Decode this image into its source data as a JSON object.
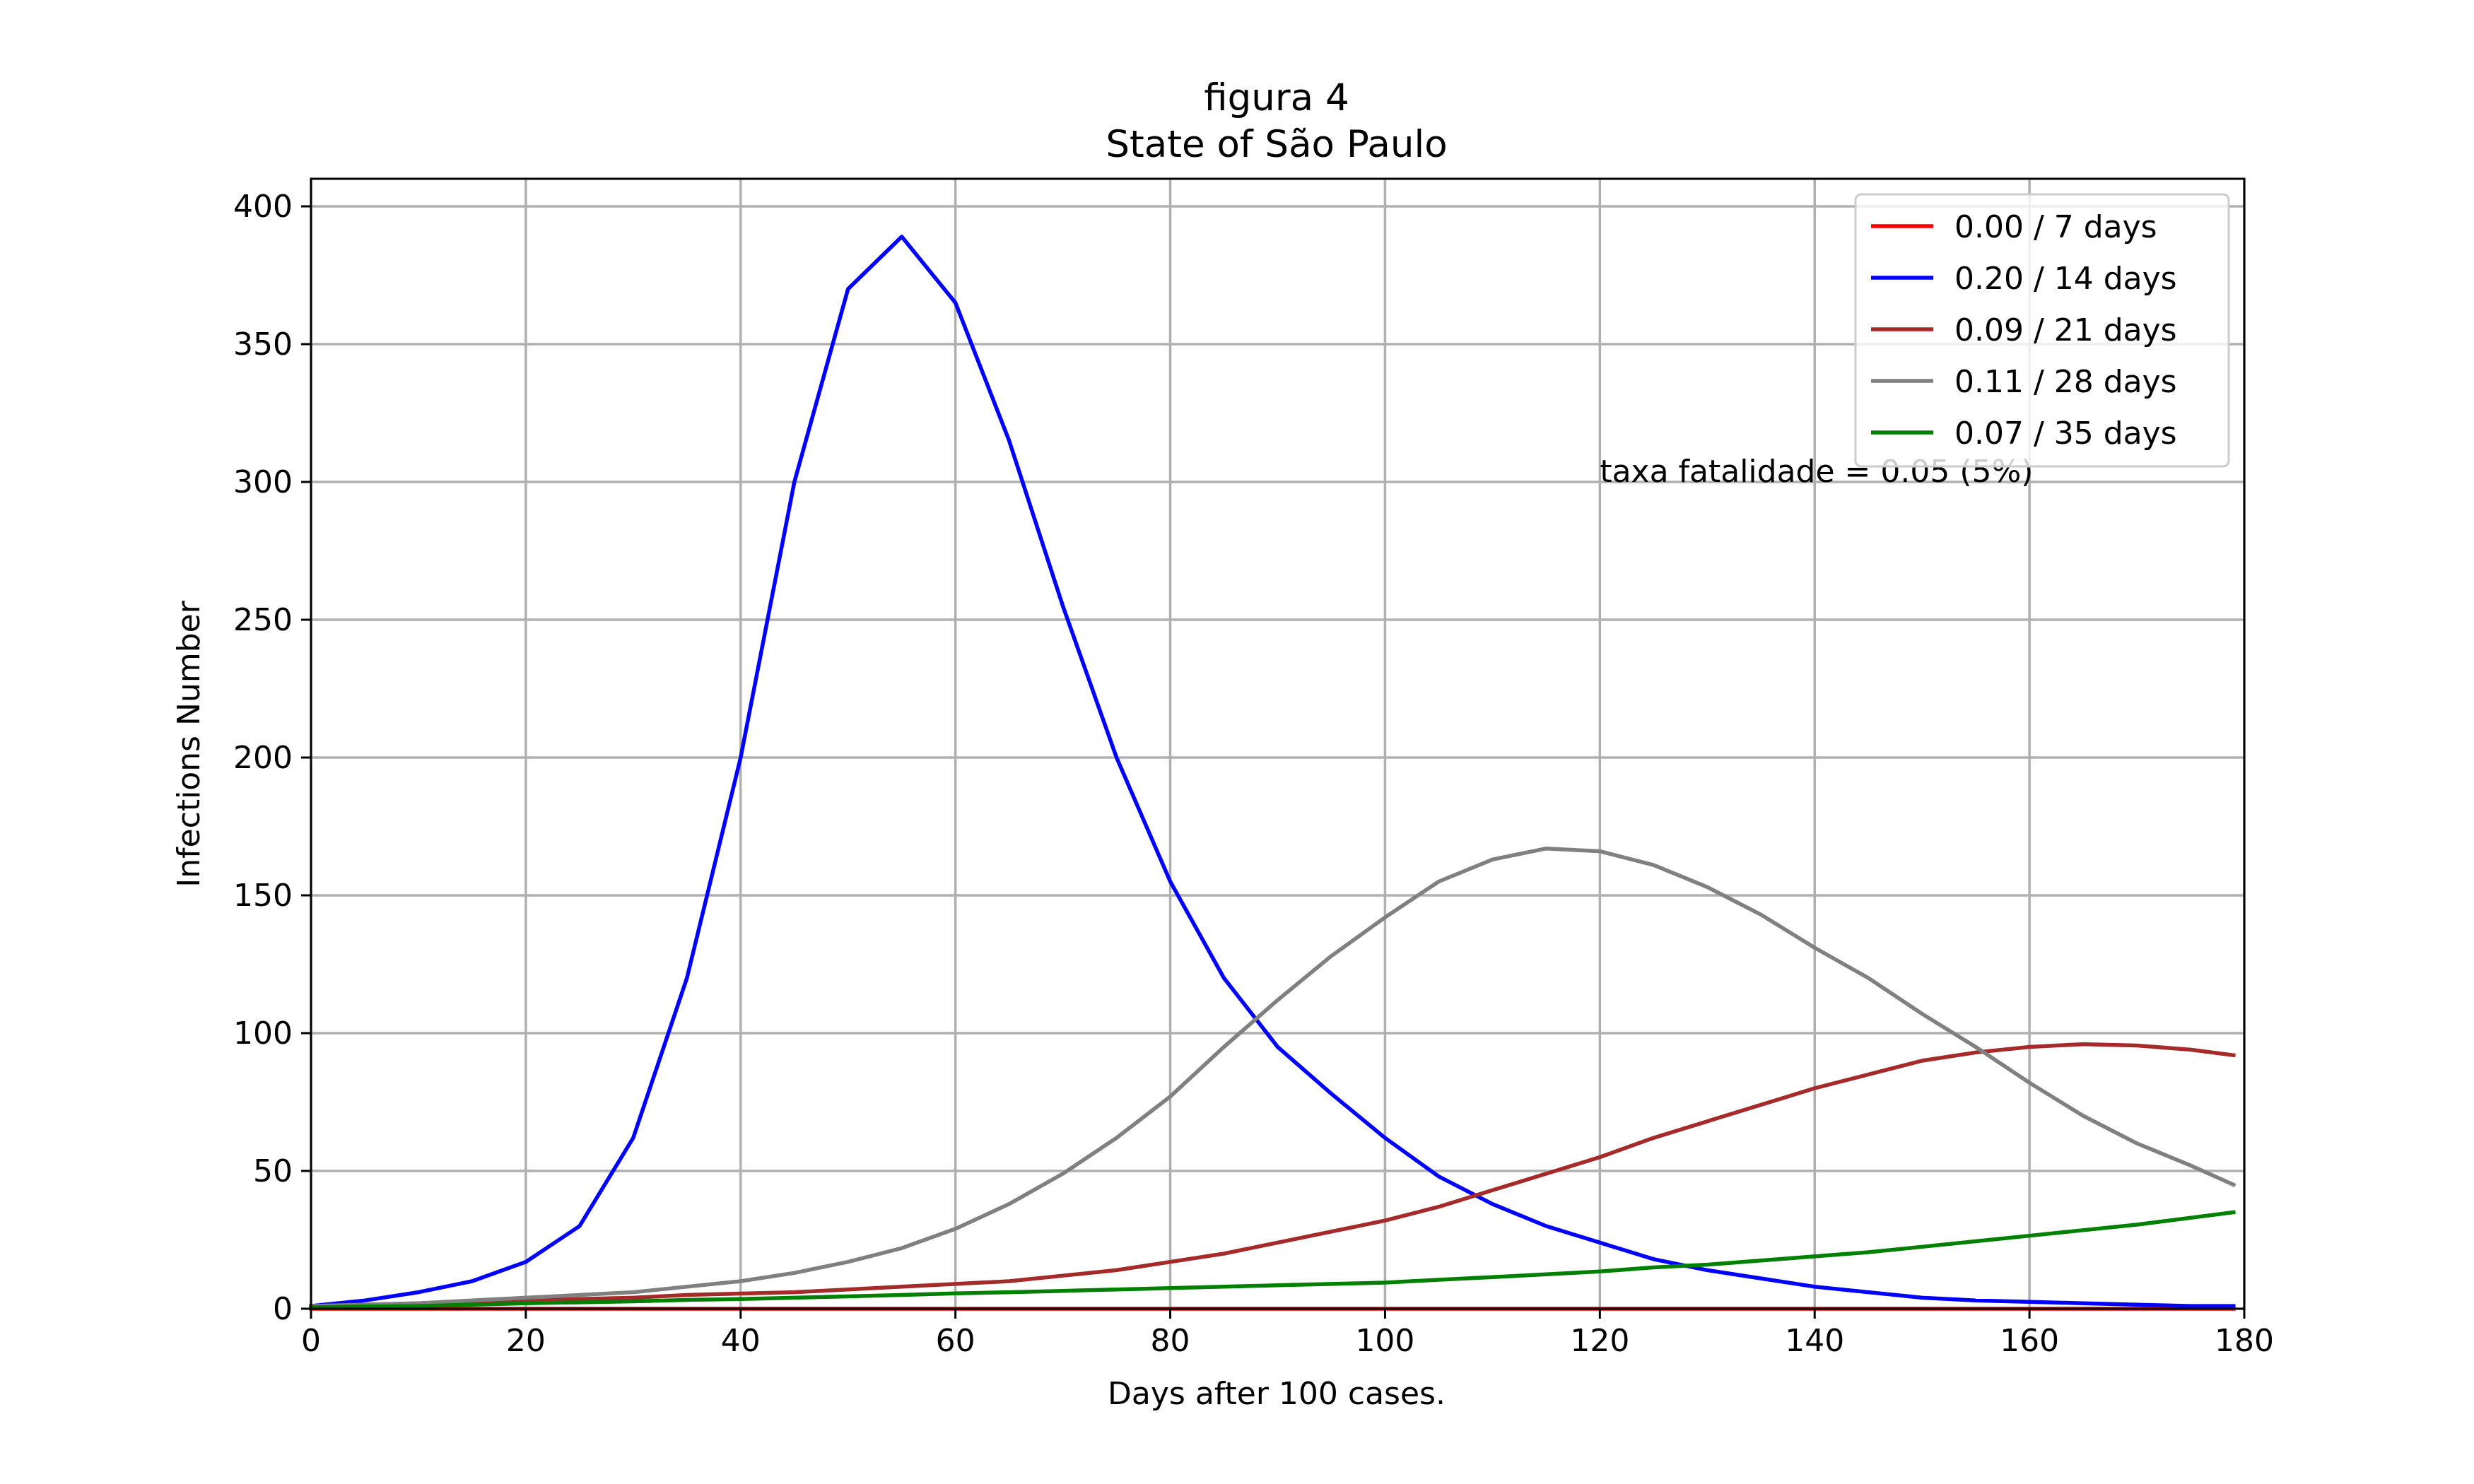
{
  "chart_data": {
    "type": "line",
    "title": "figura 4",
    "subtitle": "State of São Paulo",
    "xlabel": "Days after 100 cases.",
    "ylabel": "Infections Number",
    "xlim": [
      0,
      180
    ],
    "ylim": [
      0,
      410
    ],
    "xticks": [
      0,
      20,
      40,
      60,
      80,
      100,
      120,
      140,
      160,
      180
    ],
    "yticks": [
      0,
      50,
      100,
      150,
      200,
      250,
      300,
      350,
      400
    ],
    "grid": true,
    "legend_position": "top-right",
    "annotation": {
      "text": "taxa fatalidade = 0.05 (5%)",
      "x": 120,
      "y": 300
    },
    "x": [
      0,
      5,
      10,
      15,
      20,
      25,
      30,
      35,
      40,
      45,
      50,
      55,
      60,
      65,
      70,
      75,
      80,
      85,
      90,
      95,
      100,
      105,
      110,
      115,
      120,
      125,
      130,
      135,
      140,
      145,
      150,
      155,
      160,
      165,
      170,
      175,
      179
    ],
    "series": [
      {
        "name": "0.00 / 7 days",
        "color": "#ff0000",
        "values": [
          0,
          0,
          0,
          0,
          0,
          0,
          0,
          0,
          0,
          0,
          0,
          0,
          0,
          0,
          0,
          0,
          0,
          0,
          0,
          0,
          0,
          0,
          0,
          0,
          0,
          0,
          0,
          0,
          0,
          0,
          0,
          0,
          0,
          0,
          0,
          0,
          0
        ]
      },
      {
        "name": "0.20 / 14 days",
        "color": "#0000ff",
        "values": [
          1,
          3,
          6,
          10,
          17,
          30,
          62,
          120,
          200,
          300,
          370,
          389,
          365,
          315,
          255,
          200,
          155,
          120,
          95,
          78,
          62,
          48,
          38,
          30,
          24,
          18,
          14,
          11,
          8,
          6,
          4,
          3,
          2.5,
          2,
          1.5,
          1,
          1
        ]
      },
      {
        "name": "0.09 / 21 days",
        "color": "#a52a2a",
        "values": [
          1,
          1.5,
          2,
          2.5,
          3,
          3.5,
          4,
          5,
          5.5,
          6,
          7,
          8,
          9,
          10,
          12,
          14,
          17,
          20,
          24,
          28,
          32,
          37,
          43,
          49,
          55,
          62,
          68,
          74,
          80,
          85,
          90,
          93,
          95,
          96,
          95.5,
          94,
          92
        ]
      },
      {
        "name": "0.11 / 28 days",
        "color": "#808080",
        "values": [
          1,
          1.5,
          2,
          3,
          4,
          5,
          6,
          8,
          10,
          13,
          17,
          22,
          29,
          38,
          49,
          62,
          77,
          95,
          112,
          128,
          142,
          155,
          163,
          167,
          166,
          161,
          153,
          143,
          131,
          120,
          107,
          95,
          82,
          70,
          60,
          52,
          45
        ]
      },
      {
        "name": "0.07 / 35 days",
        "color": "#008000",
        "values": [
          0.5,
          0.8,
          1,
          1.5,
          2,
          2.3,
          2.7,
          3.2,
          3.5,
          4,
          4.5,
          5,
          5.6,
          6,
          6.5,
          7,
          7.5,
          8,
          8.5,
          9,
          9.5,
          10.5,
          11.5,
          12.5,
          13.5,
          15,
          16,
          17.5,
          19,
          20.5,
          22.5,
          24.5,
          26.5,
          28.5,
          30.5,
          33,
          35
        ]
      }
    ]
  }
}
